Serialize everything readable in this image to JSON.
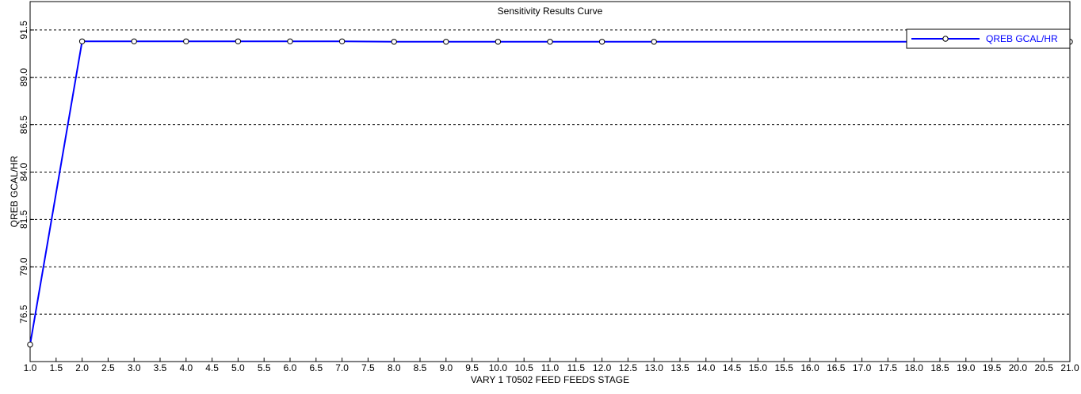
{
  "chart_data": {
    "type": "line",
    "title": "Sensitivity Results Curve",
    "x_label": "VARY   1 T0502 FEED FEEDS STAGE",
    "y_label": "QREB GCAL/HR",
    "x": [
      1,
      2,
      3,
      4,
      5,
      6,
      7,
      8,
      9,
      10,
      11,
      12,
      13,
      21
    ],
    "series": [
      {
        "name": "QREB GCAL/HR",
        "color": "#0000ff",
        "values": [
          74.9,
          90.9,
          90.9,
          90.9,
          90.9,
          90.9,
          90.9,
          90.88,
          90.88,
          90.88,
          90.88,
          90.88,
          90.88,
          90.88
        ]
      }
    ],
    "xlim": [
      1,
      21
    ],
    "ylim": [
      74,
      93
    ],
    "xticks": [
      {
        "value": 1,
        "label": "1.0"
      },
      1.5,
      {
        "value": 2,
        "label": "2.0"
      },
      2.5,
      {
        "value": 3,
        "label": "3.0"
      },
      3.5,
      {
        "value": 4,
        "label": "4.0"
      },
      4.5,
      {
        "value": 5,
        "label": "5.0"
      },
      5.5,
      {
        "value": 6,
        "label": "6.0"
      },
      6.5,
      {
        "value": 7,
        "label": "7.0"
      },
      7.5,
      {
        "value": 8,
        "label": "8.0"
      },
      8.5,
      {
        "value": 9,
        "label": "9.0"
      },
      9.5,
      {
        "value": 10,
        "label": "10.0"
      },
      10.5,
      {
        "value": 11,
        "label": "11.0"
      },
      11.5,
      {
        "value": 12,
        "label": "12.0"
      },
      12.5,
      {
        "value": 13,
        "label": "13.0"
      },
      13.5,
      {
        "value": 14,
        "label": "14.0"
      },
      14.5,
      {
        "value": 15,
        "label": "15.0"
      },
      15.5,
      {
        "value": 16,
        "label": "16.0"
      },
      16.5,
      {
        "value": 17,
        "label": "17.0"
      },
      17.5,
      {
        "value": 18,
        "label": "18.0"
      },
      18.5,
      {
        "value": 19,
        "label": "19.0"
      },
      19.5,
      {
        "value": 20,
        "label": "20.0"
      },
      20.5,
      {
        "value": 21,
        "label": "21.0"
      }
    ],
    "yticks": [
      76.5,
      {
        "value": 79,
        "label": "79.0"
      },
      81.5,
      {
        "value": 84,
        "label": "84.0"
      },
      86.5,
      {
        "value": 89,
        "label": "89.0"
      },
      91.5
    ],
    "grid": true,
    "legend": "upper right"
  }
}
